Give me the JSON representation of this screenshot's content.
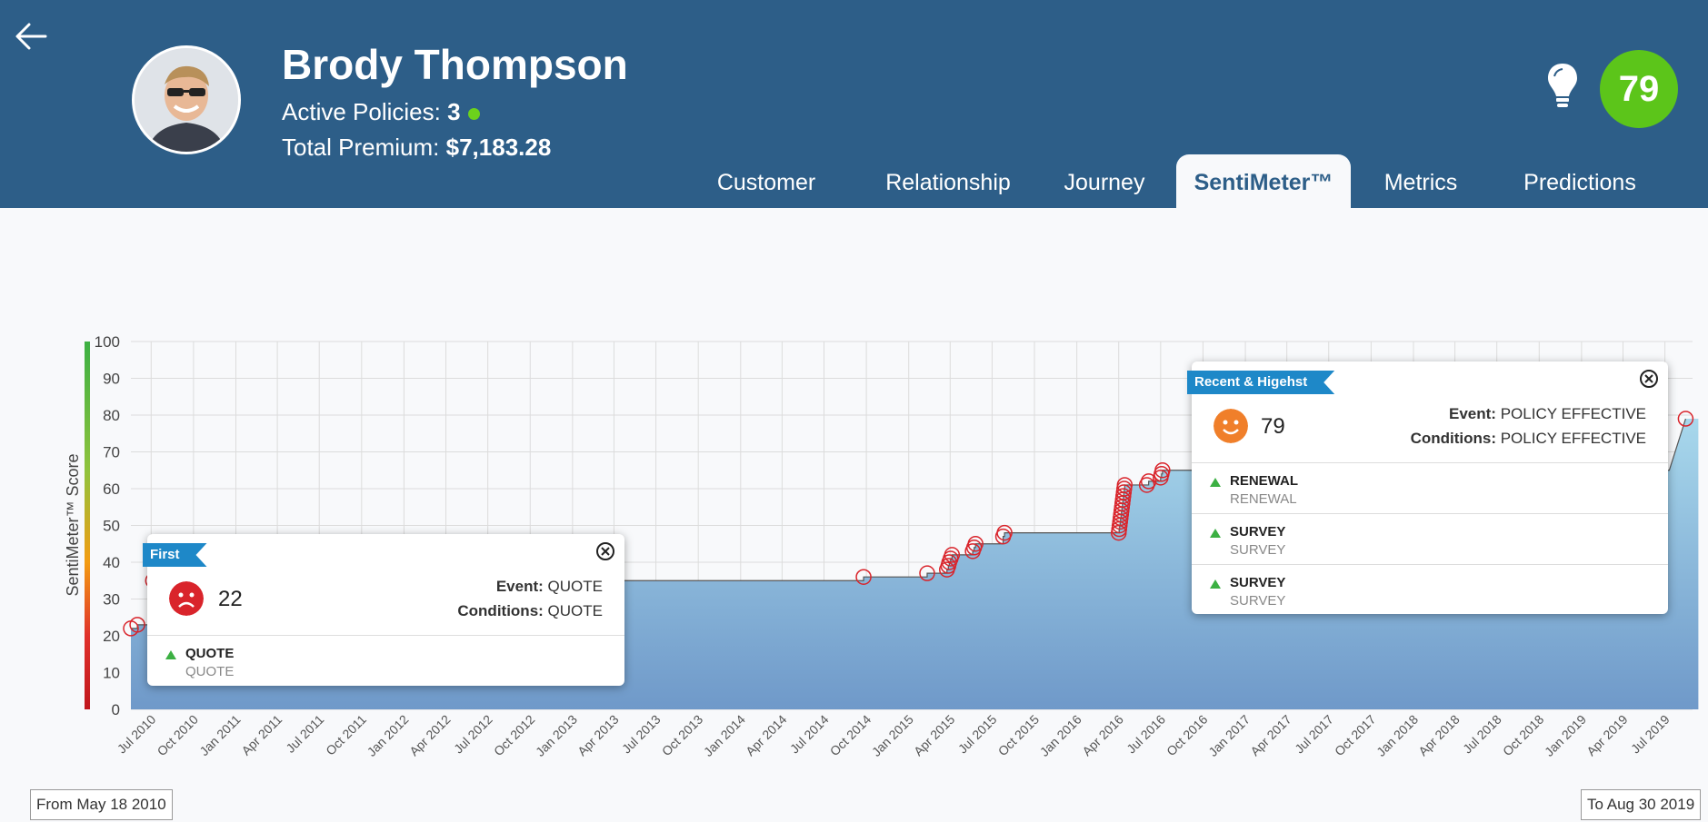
{
  "header": {
    "name": "Brody Thompson",
    "active_policies_label": "Active Policies:",
    "active_policies_value": "3",
    "total_premium_label": "Total Premium:",
    "total_premium_value": "$7,183.28",
    "score": "79",
    "colors": {
      "bar": "#2d5e88",
      "score": "#5cc51a",
      "status_dot": "#6cd21c"
    }
  },
  "tabs": [
    {
      "label": "Customer",
      "active": false
    },
    {
      "label": "Relationship",
      "active": false
    },
    {
      "label": "Journey",
      "active": false
    },
    {
      "label": "SentiMeter™",
      "active": true
    },
    {
      "label": "Metrics",
      "active": false
    },
    {
      "label": "Predictions",
      "active": false
    }
  ],
  "chart_data": {
    "type": "area",
    "ylabel": "SentiMeter™ Score",
    "ylim": [
      0,
      100
    ],
    "yticks": [
      0,
      10,
      20,
      30,
      40,
      50,
      60,
      70,
      80,
      90,
      100
    ],
    "xlim": [
      "2010-05-18",
      "2019-08-30"
    ],
    "xticks": [
      "Jul 2010",
      "Oct 2010",
      "Jan 2011",
      "Apr 2011",
      "Jul 2011",
      "Oct 2011",
      "Jan 2012",
      "Apr 2012",
      "Jul 2012",
      "Oct 2012",
      "Jan 2013",
      "Apr 2013",
      "Jul 2013",
      "Oct 2013",
      "Jan 2014",
      "Apr 2014",
      "Jul 2014",
      "Oct 2014",
      "Jan 2015",
      "Apr 2015",
      "Jul 2015",
      "Oct 2015",
      "Jan 2016",
      "Apr 2016",
      "Jul 2016",
      "Oct 2016",
      "Jan 2017",
      "Apr 2017",
      "Jul 2017",
      "Oct 2017",
      "Jan 2018",
      "Apr 2018",
      "Jul 2018",
      "Oct 2018",
      "Jan 2019",
      "Apr 2019",
      "Jul 2019"
    ],
    "grid": true,
    "points": [
      {
        "date": "2010-05-18",
        "value": 22
      },
      {
        "date": "2010-06-01",
        "value": 23
      },
      {
        "date": "2010-07-05",
        "value": 35
      },
      {
        "date": "2014-09-25",
        "value": 36
      },
      {
        "date": "2015-02-10",
        "value": 37
      },
      {
        "date": "2015-03-25",
        "value": 38
      },
      {
        "date": "2015-03-28",
        "value": 39
      },
      {
        "date": "2015-03-30",
        "value": 40
      },
      {
        "date": "2015-04-02",
        "value": 41
      },
      {
        "date": "2015-04-05",
        "value": 42
      },
      {
        "date": "2015-05-20",
        "value": 43
      },
      {
        "date": "2015-05-23",
        "value": 44
      },
      {
        "date": "2015-05-26",
        "value": 45
      },
      {
        "date": "2015-07-25",
        "value": 47
      },
      {
        "date": "2015-07-28",
        "value": 48
      },
      {
        "date": "2016-04-01",
        "value": 48
      },
      {
        "date": "2016-04-02",
        "value": 49
      },
      {
        "date": "2016-04-03",
        "value": 50
      },
      {
        "date": "2016-04-04",
        "value": 51
      },
      {
        "date": "2016-04-05",
        "value": 52
      },
      {
        "date": "2016-04-06",
        "value": 53
      },
      {
        "date": "2016-04-07",
        "value": 54
      },
      {
        "date": "2016-04-08",
        "value": 55
      },
      {
        "date": "2016-04-09",
        "value": 56
      },
      {
        "date": "2016-04-10",
        "value": 57
      },
      {
        "date": "2016-04-11",
        "value": 58
      },
      {
        "date": "2016-04-12",
        "value": 59
      },
      {
        "date": "2016-04-13",
        "value": 60
      },
      {
        "date": "2016-04-14",
        "value": 61
      },
      {
        "date": "2016-06-01",
        "value": 61
      },
      {
        "date": "2016-06-05",
        "value": 62
      },
      {
        "date": "2016-07-01",
        "value": 63
      },
      {
        "date": "2016-07-03",
        "value": 64
      },
      {
        "date": "2016-07-05",
        "value": 65
      },
      {
        "date": "2019-08-15",
        "value": 79
      }
    ]
  },
  "popup_first": {
    "ribbon": "First",
    "score": "22",
    "event_label": "Event:",
    "event_value": "QUOTE",
    "conditions_label": "Conditions:",
    "conditions_value": "QUOTE",
    "items": [
      {
        "title": "QUOTE",
        "subtitle": "QUOTE"
      }
    ]
  },
  "popup_recent": {
    "ribbon": "Recent & Higehst",
    "score": "79",
    "event_label": "Event:",
    "event_value": "POLICY EFFECTIVE",
    "conditions_label": "Conditions:",
    "conditions_value": "POLICY EFFECTIVE",
    "items": [
      {
        "title": "RENEWAL",
        "subtitle": "RENEWAL"
      },
      {
        "title": "SURVEY",
        "subtitle": "SURVEY"
      },
      {
        "title": "SURVEY",
        "subtitle": "SURVEY"
      }
    ]
  },
  "range": {
    "from": "From May 18 2010",
    "to": "To Aug 30 2019"
  }
}
